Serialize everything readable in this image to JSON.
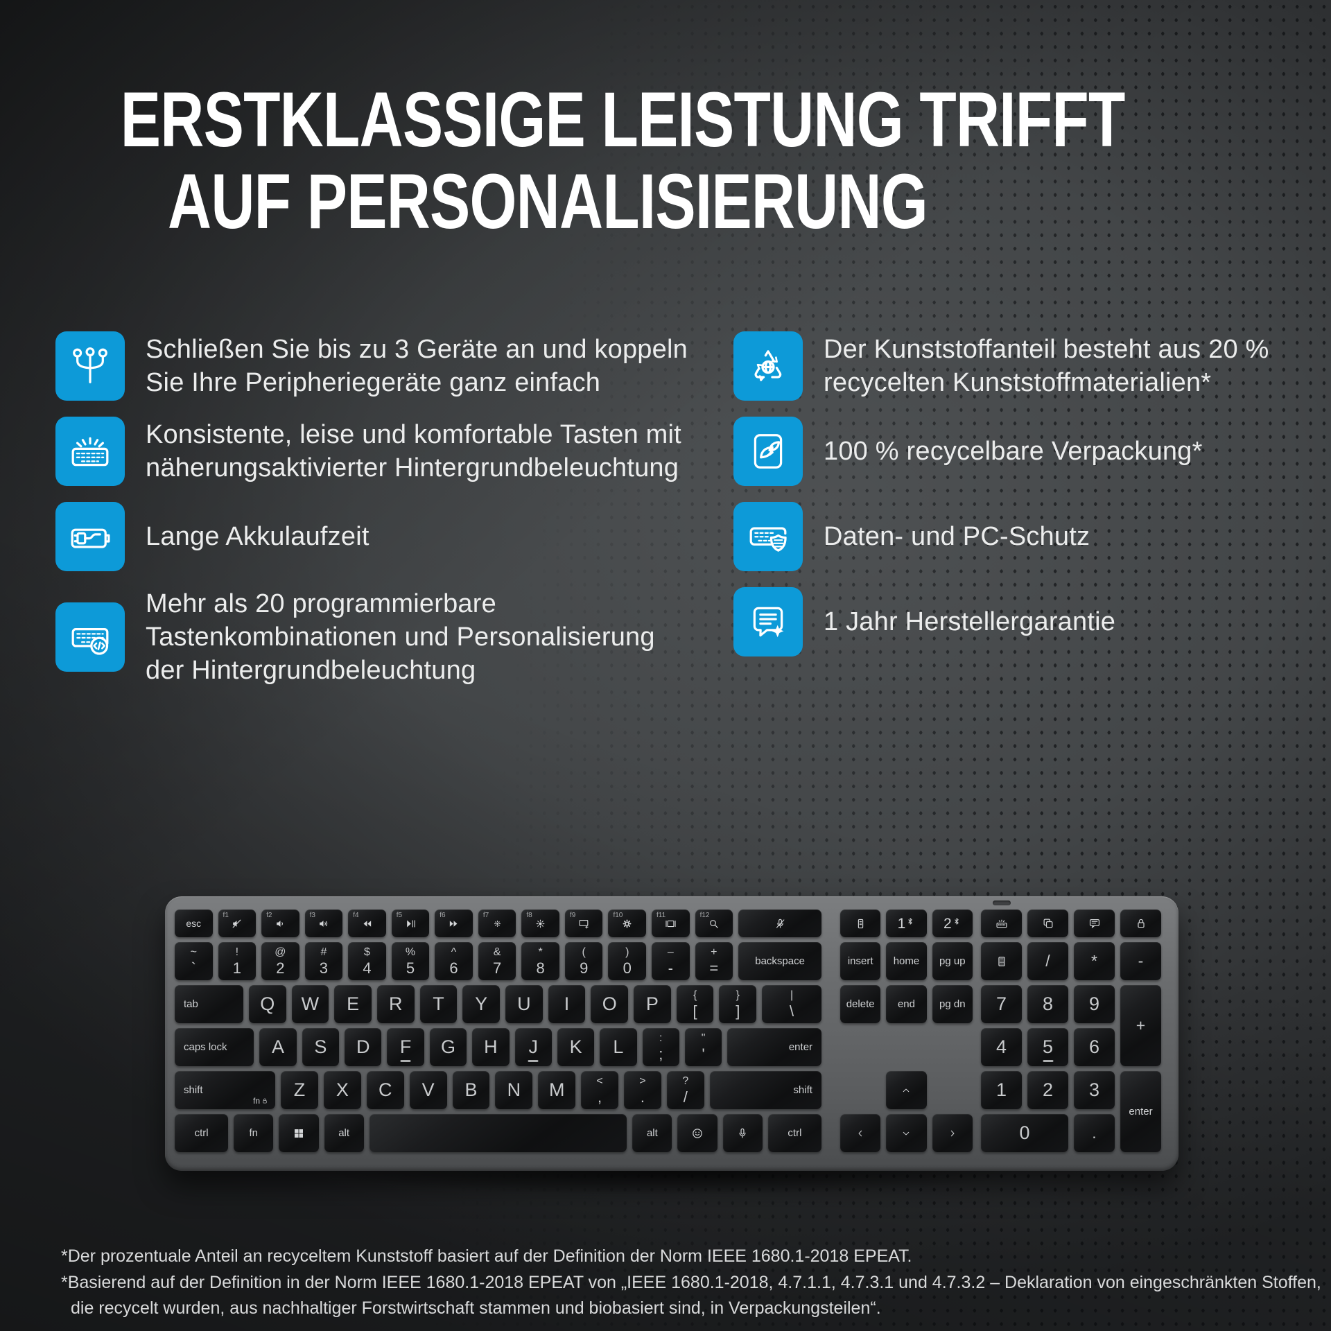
{
  "title": {
    "line1": "ERSTKLASSIGE LEISTUNG TRIFFT",
    "line2": "AUF PERSONALISIERUNG"
  },
  "features": {
    "left": [
      {
        "icon": "multi-device",
        "lines": [
          "Schließen Sie bis zu 3 Geräte an und koppeln",
          "Sie Ihre Peripheriegeräte ganz einfach"
        ]
      },
      {
        "icon": "backlit-keys",
        "lines": [
          "Konsistente, leise und komfortable Tasten mit",
          "näherungsaktivierter Hintergrundbeleuchtung"
        ]
      },
      {
        "icon": "battery-life",
        "lines": [
          "Lange Akkulaufzeit"
        ]
      },
      {
        "icon": "programmable-keys",
        "lines": [
          "Mehr als 20 programmierbare",
          "Tastenkombinationen und Personalisierung",
          "der Hintergrundbeleuchtung"
        ]
      }
    ],
    "right": [
      {
        "icon": "recycled-plastic",
        "lines": [
          "Der Kunststoffanteil besteht aus 20 %",
          "recycelten Kunststoffmaterialien*"
        ]
      },
      {
        "icon": "recyclable-packaging",
        "lines": [
          "100 % recycelbare Verpackung*"
        ]
      },
      {
        "icon": "data-protection",
        "lines": [
          "Daten- und PC-Schutz"
        ]
      },
      {
        "icon": "warranty",
        "lines": [
          "1 Jahr Herstellergarantie"
        ]
      }
    ]
  },
  "footnotes": [
    "*Der prozentuale Anteil an recyceltem Kunststoff basiert auf der Definition der Norm IEEE 1680.1-2018 EPEAT.",
    "*Basierend auf der Definition in der Norm IEEE 1680.1-2018 EPEAT von „IEEE 1680.1-2018, 4.7.1.1, 4.7.3.1 und 4.7.3.2 – Deklaration von eingeschränkten Stoffen,",
    "die recycelt wurden, aus nachhaltiger Forstwirtschaft stammen und biobasiert sind, in Verpackungsteilen“."
  ],
  "colors": {
    "accent_blue": "#0d9ad8",
    "background_mid": "#434648",
    "keyboard_body": "#636567",
    "key_dark": "#141517",
    "title_white": "#ffffff",
    "text_light": "#eceded"
  },
  "keyboard": {
    "sections": {
      "main": {
        "rows": [
          [
            {
              "text": "esc",
              "size": "xs"
            },
            {
              "fkey": "f1",
              "icon": "mute"
            },
            {
              "fkey": "f2",
              "icon": "volume-down"
            },
            {
              "fkey": "f3",
              "icon": "volume-up"
            },
            {
              "fkey": "f4",
              "icon": "previous-track"
            },
            {
              "fkey": "f5",
              "icon": "play-pause"
            },
            {
              "fkey": "f6",
              "icon": "next-track"
            },
            {
              "fkey": "f7",
              "icon": "brightness-low"
            },
            {
              "fkey": "f8",
              "icon": "brightness-high"
            },
            {
              "fkey": "f9",
              "icon": "share-screen"
            },
            {
              "fkey": "f10",
              "icon": "settings"
            },
            {
              "fkey": "f11",
              "icon": "display"
            },
            {
              "fkey": "f12",
              "icon": "search"
            },
            {
              "icon": "mic-mute",
              "w": 2.2
            }
          ],
          [
            {
              "top": "~",
              "bottom": "`"
            },
            {
              "top": "!",
              "bottom": "1"
            },
            {
              "top": "@",
              "bottom": "2"
            },
            {
              "top": "#",
              "bottom": "3"
            },
            {
              "top": "$",
              "bottom": "4"
            },
            {
              "top": "%",
              "bottom": "5"
            },
            {
              "top": "^",
              "bottom": "6"
            },
            {
              "top": "&",
              "bottom": "7"
            },
            {
              "top": "*",
              "bottom": "8"
            },
            {
              "top": "(",
              "bottom": "9"
            },
            {
              "top": ")",
              "bottom": "0"
            },
            {
              "top": "–",
              "bottom": "-"
            },
            {
              "top": "+",
              "bottom": "="
            },
            {
              "text": "backspace",
              "w": 2.2,
              "size": "s"
            }
          ],
          [
            {
              "text": "tab",
              "w": 1.6,
              "size": "s",
              "align": "left"
            },
            {
              "text": "Q"
            },
            {
              "text": "W"
            },
            {
              "text": "E"
            },
            {
              "text": "R"
            },
            {
              "text": "T"
            },
            {
              "text": "Y"
            },
            {
              "text": "U"
            },
            {
              "text": "I"
            },
            {
              "text": "O"
            },
            {
              "text": "P"
            },
            {
              "top": "{",
              "bottom": "["
            },
            {
              "top": "}",
              "bottom": "]"
            },
            {
              "top": "|",
              "bottom": "\\",
              "w": 1.6
            }
          ],
          [
            {
              "text": "caps lock",
              "w": 1.9,
              "size": "s",
              "align": "left"
            },
            {
              "text": "A"
            },
            {
              "text": "S"
            },
            {
              "text": "D"
            },
            {
              "text": "F",
              "bump": true
            },
            {
              "text": "G"
            },
            {
              "text": "H"
            },
            {
              "text": "J",
              "bump": true
            },
            {
              "text": "K"
            },
            {
              "text": "L"
            },
            {
              "top": ":",
              "bottom": ";"
            },
            {
              "top": "\"",
              "bottom": "'"
            },
            {
              "text": "enter",
              "w": 2.3,
              "size": "s",
              "align": "right"
            }
          ],
          [
            {
              "text": "shift",
              "w": 2.45,
              "size": "s",
              "align": "left",
              "sub": "fn-lock"
            },
            {
              "text": "Z"
            },
            {
              "text": "X"
            },
            {
              "text": "C"
            },
            {
              "text": "V"
            },
            {
              "text": "B"
            },
            {
              "text": "N"
            },
            {
              "text": "M"
            },
            {
              "top": "<",
              "bottom": ","
            },
            {
              "top": ">",
              "bottom": "."
            },
            {
              "top": "?",
              "bottom": "/"
            },
            {
              "text": "shift",
              "w": 2.75,
              "size": "s",
              "align": "right"
            }
          ],
          [
            {
              "text": "ctrl",
              "w": 1.35,
              "size": "s"
            },
            {
              "text": "fn",
              "size": "s"
            },
            {
              "icon": "windows"
            },
            {
              "text": "alt",
              "size": "s"
            },
            {
              "space": true,
              "w": 6.5
            },
            {
              "text": "alt",
              "size": "s"
            },
            {
              "icon": "emoji"
            },
            {
              "icon": "dictation-mic"
            },
            {
              "text": "ctrl",
              "w": 1.35,
              "size": "s"
            }
          ]
        ]
      },
      "nav": {
        "rows": [
          [
            {
              "icon": "connected-device"
            },
            {
              "bt": "1"
            },
            {
              "bt": "2"
            }
          ],
          [
            {
              "text": "insert",
              "size": "s"
            },
            {
              "text": "home",
              "size": "s"
            },
            {
              "text": "pg up",
              "size": "s"
            }
          ],
          [
            {
              "text": "delete",
              "size": "s"
            },
            {
              "text": "end",
              "size": "s"
            },
            {
              "text": "pg dn",
              "size": "s"
            }
          ],
          [
            {
              "ghost": true
            },
            {
              "ghost": true
            },
            {
              "ghost": true
            }
          ],
          [
            {
              "ghost": true
            },
            {
              "icon": "arrow-up"
            },
            {
              "ghost": true
            }
          ],
          [
            {
              "icon": "arrow-left"
            },
            {
              "icon": "arrow-down"
            },
            {
              "icon": "arrow-right"
            }
          ]
        ]
      },
      "numpad": {
        "keys": [
          {
            "icon": "keyboard-backlight"
          },
          {
            "icon": "screen-snip"
          },
          {
            "icon": "chat"
          },
          {
            "icon": "lock"
          },
          {
            "icon": "calculator"
          },
          {
            "text": "/",
            "size": "m"
          },
          {
            "text": "*",
            "size": "m"
          },
          {
            "text": "-",
            "size": "m"
          },
          {
            "text": "7"
          },
          {
            "text": "8"
          },
          {
            "text": "9"
          },
          {
            "text": "+",
            "rs": 2,
            "size": "m"
          },
          {
            "text": "4"
          },
          {
            "text": "5",
            "bump": true
          },
          {
            "text": "6"
          },
          {
            "text": "1"
          },
          {
            "text": "2"
          },
          {
            "text": "3"
          },
          {
            "text": "enter",
            "rs": 2,
            "size": "s"
          },
          {
            "text": "0",
            "cs": 2
          },
          {
            "text": ".",
            "size": "m"
          }
        ]
      }
    }
  }
}
